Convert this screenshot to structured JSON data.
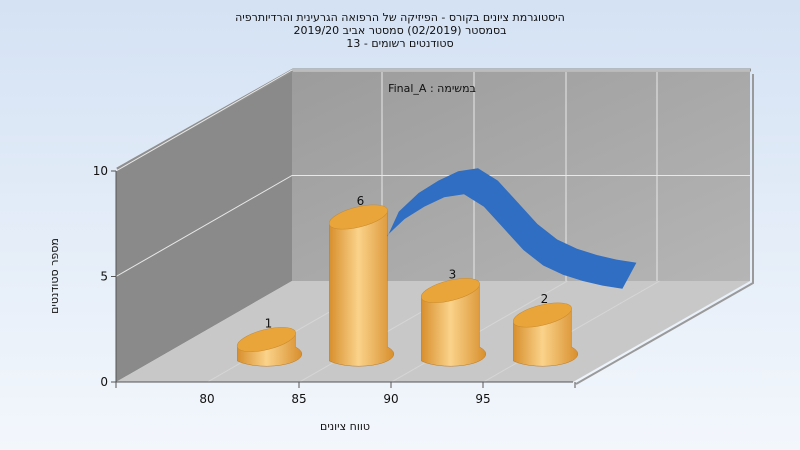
{
  "chart_data": {
    "type": "bar",
    "title_lines": [
      "היסטוגרמת ציונים בקורס - הפיזיקה של הרפואה הגרעינית והרדיותרפיה",
      "בסמסטר  (02/2019)  סמסטר אביב 2019/20",
      "סטודנטים רשומים - 13"
    ],
    "subtitle": "במשימה : Final_A",
    "xlabel": "טווח ציונים",
    "ylabel": "מספר סטודנטים",
    "x_ticks": [
      80,
      85,
      90,
      95
    ],
    "y_ticks": [
      0,
      5,
      10
    ],
    "ylim": [
      0,
      10
    ],
    "bars": [
      {
        "x": 81,
        "value": 1,
        "label": "1"
      },
      {
        "x": 86,
        "value": 6,
        "label": "6"
      },
      {
        "x": 91,
        "value": 3,
        "label": "3"
      },
      {
        "x": 96,
        "value": 2,
        "label": "2"
      }
    ],
    "distribution_curve": {
      "x": [
        88,
        89,
        90,
        91,
        92,
        93,
        94,
        95,
        96,
        97,
        98,
        99,
        100,
        101
      ],
      "y": [
        4.2,
        5.6,
        6.2,
        6.6,
        6.9,
        7.0,
        6.6,
        5.9,
        5.2,
        4.7,
        4.4,
        4.2,
        4.05,
        3.95
      ]
    },
    "colors": {
      "background_top": "#d4e2f4",
      "background_bottom": "#f3f7fc",
      "back_wall": "#b5b5b5",
      "left_wall": "#8a8a8a",
      "floor": "#c8c8c8",
      "bar_light": "#fad38a",
      "bar_dark": "#d88f2d",
      "bar_top": "#e9a53a",
      "curve": "#2f6ec2"
    }
  }
}
